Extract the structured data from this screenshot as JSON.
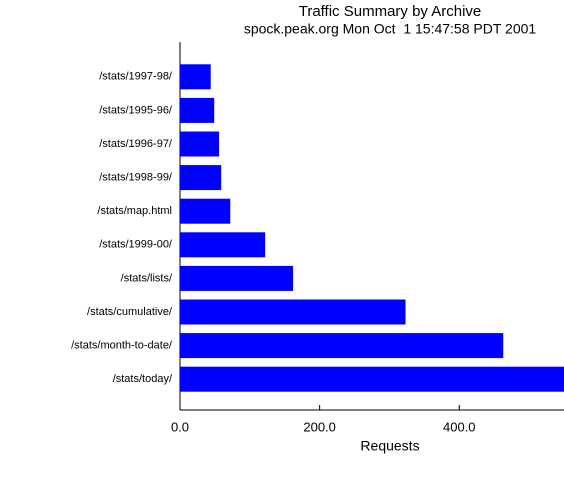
{
  "chart_data": {
    "type": "barh",
    "title": "Traffic Summary by Archive",
    "subtitle": "spock.peak.org Mon Oct  1 15:47:58 PDT 2001",
    "xlabel": "Requests",
    "categories": [
      "/stats/1997-98/",
      "/stats/1995-96/",
      "/stats/1996-97/",
      "/stats/1998-99/",
      "/stats/map.html",
      "/stats/1999-00/",
      "/stats/lists/",
      "/stats/cumulative/",
      "/stats/month-to-date/",
      "/stats/today/"
    ],
    "values": [
      44,
      49,
      56,
      59,
      72,
      122,
      162,
      323,
      463,
      550
    ],
    "color": "#0000ff",
    "xlim": [
      0,
      550
    ],
    "xticks": [
      {
        "value": 0,
        "label": "0.0"
      },
      {
        "value": 200,
        "label": "200.0"
      },
      {
        "value": 400,
        "label": "400.0"
      }
    ]
  }
}
